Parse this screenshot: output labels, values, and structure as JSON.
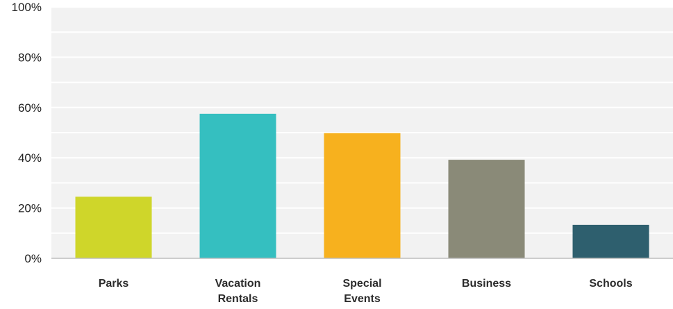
{
  "chart_data": {
    "type": "bar",
    "categories": [
      [
        "Parks"
      ],
      [
        "Vacation",
        "Rentals"
      ],
      [
        "Special",
        "Events"
      ],
      [
        "Business"
      ],
      [
        "Schools"
      ]
    ],
    "values": [
      24.5,
      57.5,
      49.8,
      39.2,
      13.3
    ],
    "colors": [
      "#cfd62a",
      "#35bfc0",
      "#f7b11e",
      "#8a8a78",
      "#2e5f6e"
    ],
    "yticks": [
      "0%",
      "20%",
      "40%",
      "60%",
      "80%",
      "100%"
    ],
    "ylim": [
      0,
      100
    ],
    "grid": true,
    "plot_background": "#f2f2f2",
    "gridline_color": "#ffffff",
    "title": "",
    "xlabel": "",
    "ylabel": ""
  }
}
